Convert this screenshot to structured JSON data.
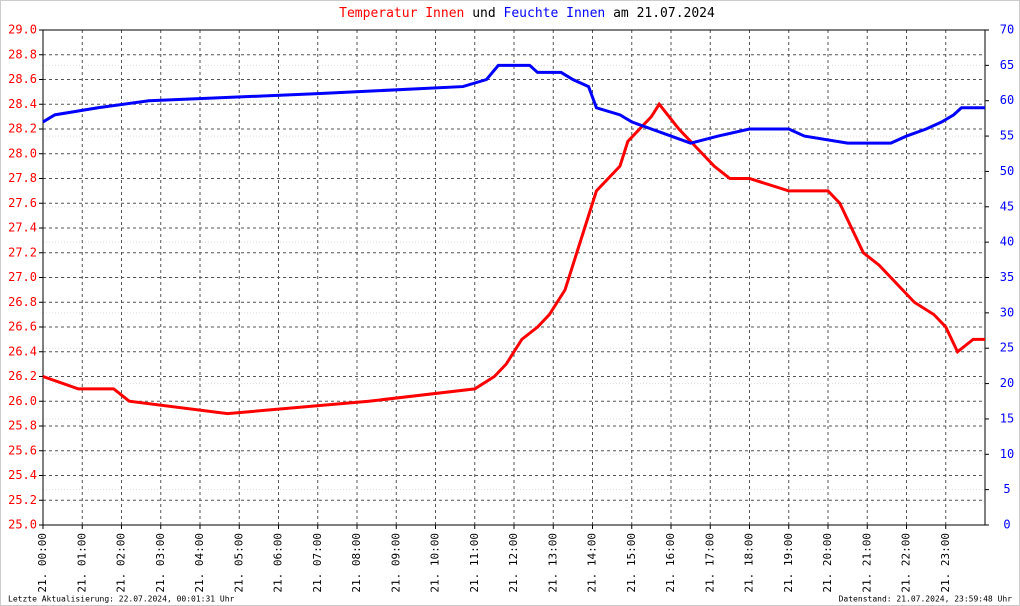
{
  "chart_data": {
    "type": "line",
    "title_joiner": "und",
    "title_suffix": "am 21.07.2024",
    "footer_left": "Letzte Aktualisierung: 22.07.2024, 00:01:31 Uhr",
    "footer_right": "Datenstand: 21.07.2024, 23:59:48 Uhr",
    "xlim": [
      0,
      24
    ],
    "xticks": [
      {
        "value": 0,
        "label": "21. 00:00"
      },
      {
        "value": 1,
        "label": "21. 01:00"
      },
      {
        "value": 2,
        "label": "21. 02:00"
      },
      {
        "value": 3,
        "label": "21. 03:00"
      },
      {
        "value": 4,
        "label": "21. 04:00"
      },
      {
        "value": 5,
        "label": "21. 05:00"
      },
      {
        "value": 6,
        "label": "21. 06:00"
      },
      {
        "value": 7,
        "label": "21. 07:00"
      },
      {
        "value": 8,
        "label": "21. 08:00"
      },
      {
        "value": 9,
        "label": "21. 09:00"
      },
      {
        "value": 10,
        "label": "21. 10:00"
      },
      {
        "value": 11,
        "label": "21. 11:00"
      },
      {
        "value": 12,
        "label": "21. 12:00"
      },
      {
        "value": 13,
        "label": "21. 13:00"
      },
      {
        "value": 14,
        "label": "21. 14:00"
      },
      {
        "value": 15,
        "label": "21. 15:00"
      },
      {
        "value": 16,
        "label": "21. 16:00"
      },
      {
        "value": 17,
        "label": "21. 17:00"
      },
      {
        "value": 18,
        "label": "21. 18:00"
      },
      {
        "value": 19,
        "label": "21. 19:00"
      },
      {
        "value": 20,
        "label": "21. 20:00"
      },
      {
        "value": 21,
        "label": "21. 21:00"
      },
      {
        "value": 22,
        "label": "21. 22:00"
      },
      {
        "value": 23,
        "label": "21. 23:00"
      }
    ],
    "ylim": [
      25,
      29
    ],
    "yticks": [
      {
        "value": 25,
        "label": "25.0"
      },
      {
        "value": 25.2,
        "label": "25.2"
      },
      {
        "value": 25.4,
        "label": "25.4"
      },
      {
        "value": 25.6,
        "label": "25.6"
      },
      {
        "value": 25.8,
        "label": "25.8"
      },
      {
        "value": 26,
        "label": "26.0"
      },
      {
        "value": 26.2,
        "label": "26.2"
      },
      {
        "value": 26.4,
        "label": "26.4"
      },
      {
        "value": 26.6,
        "label": "26.6"
      },
      {
        "value": 26.8,
        "label": "26.8"
      },
      {
        "value": 27,
        "label": "27.0"
      },
      {
        "value": 27.2,
        "label": "27.2"
      },
      {
        "value": 27.4,
        "label": "27.4"
      },
      {
        "value": 27.6,
        "label": "27.6"
      },
      {
        "value": 27.8,
        "label": "27.8"
      },
      {
        "value": 28,
        "label": "28.0"
      },
      {
        "value": 28.2,
        "label": "28.2"
      },
      {
        "value": 28.4,
        "label": "28.4"
      },
      {
        "value": 28.6,
        "label": "28.6"
      },
      {
        "value": 28.8,
        "label": "28.8"
      },
      {
        "value": 29,
        "label": "29.0"
      }
    ],
    "y2lim": [
      0,
      70
    ],
    "y2ticks": [
      0,
      5,
      10,
      15,
      20,
      25,
      30,
      35,
      40,
      45,
      50,
      55,
      60,
      65,
      70
    ],
    "grid": true,
    "series": [
      {
        "name": "Temperatur Innen",
        "color": "#ff0000",
        "x": [
          0,
          0.9,
          1.8,
          2.2,
          4.7,
          8.3,
          11.0,
          11.5,
          11.8,
          12.0,
          12.2,
          12.6,
          12.9,
          13.1,
          13.3,
          13.5,
          13.7,
          13.9,
          14.1,
          14.4,
          14.7,
          14.9,
          15.2,
          15.5,
          15.7,
          16.2,
          16.5,
          16.8,
          17.1,
          17.5,
          18.0,
          19.0,
          20.0,
          20.3,
          20.6,
          20.9,
          21.3,
          21.6,
          21.9,
          22.2,
          22.7,
          23.0,
          23.3,
          23.7,
          24.0
        ],
        "values": [
          26.2,
          26.1,
          26.1,
          26.0,
          25.9,
          26.0,
          26.1,
          26.2,
          26.3,
          26.4,
          26.5,
          26.6,
          26.7,
          26.8,
          26.9,
          27.1,
          27.3,
          27.5,
          27.7,
          27.8,
          27.9,
          28.1,
          28.2,
          28.3,
          28.4,
          28.2,
          28.1,
          28.0,
          27.9,
          27.8,
          27.8,
          27.7,
          27.7,
          27.6,
          27.4,
          27.2,
          27.1,
          27.0,
          26.9,
          26.8,
          26.7,
          26.6,
          26.4,
          26.5,
          26.5
        ]
      },
      {
        "name": "Feuchte Innen",
        "color": "#0000ff",
        "axis": "y2",
        "x": [
          0,
          0.3,
          1.4,
          2.7,
          7.0,
          10.7,
          11.3,
          11.6,
          12.4,
          12.6,
          13.2,
          13.5,
          13.9,
          14.1,
          14.7,
          15.0,
          15.5,
          16.0,
          16.5,
          17.2,
          18.0,
          19.0,
          19.4,
          20.5,
          21.6,
          22.0,
          22.5,
          22.9,
          23.2,
          23.4,
          24.0
        ],
        "values": [
          57,
          58,
          59,
          60,
          61,
          62,
          63,
          65,
          65,
          64,
          64,
          63,
          62,
          59,
          58,
          57,
          56,
          55,
          54,
          55,
          56,
          56,
          55,
          54,
          54,
          55,
          56,
          57,
          58,
          59,
          59
        ]
      }
    ]
  }
}
